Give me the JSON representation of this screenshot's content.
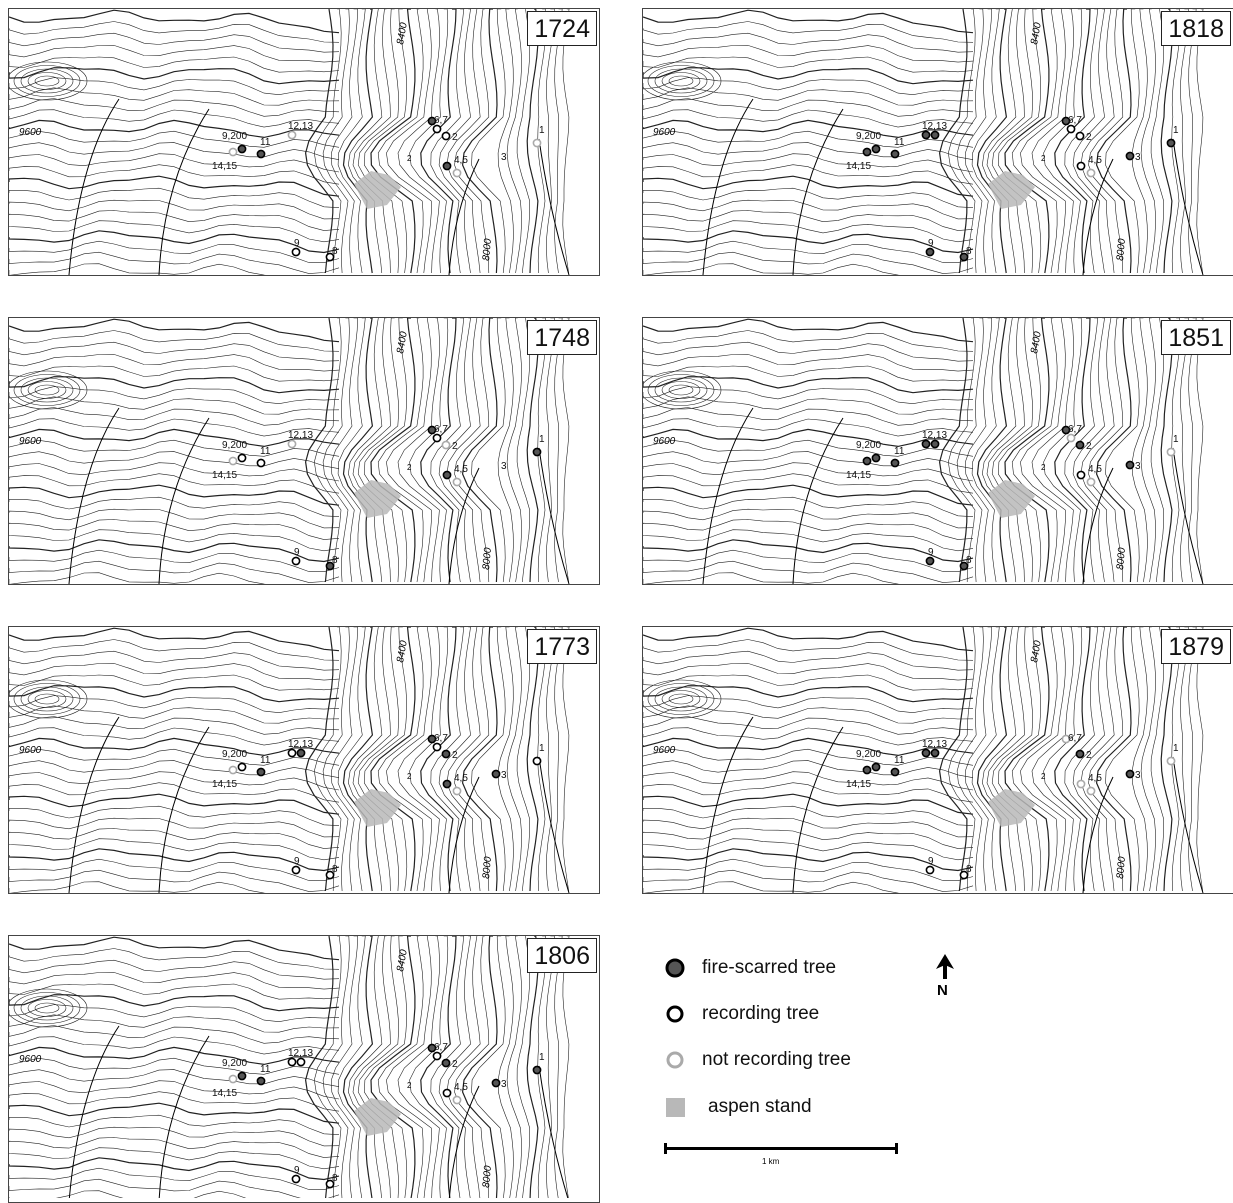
{
  "panels": [
    {
      "year": "1724",
      "trees": [
        {
          "label": "9,200",
          "status": "not"
        },
        {
          "label": "14,15",
          "status": "fire"
        },
        {
          "label": "11",
          "status": "fire"
        },
        {
          "label": "12,13",
          "status": "not"
        },
        {
          "label": "6,7",
          "status": "fire"
        },
        {
          "label": "6,7b",
          "status": "recording"
        },
        {
          "label": "2",
          "status": "recording"
        },
        {
          "label": "4,5",
          "status": "fire"
        },
        {
          "label": "4,5b",
          "status": "not"
        },
        {
          "label": "3",
          "status": "none"
        },
        {
          "label": "1",
          "status": "not"
        },
        {
          "label": "9",
          "status": "recording"
        },
        {
          "label": "8",
          "status": "recording"
        }
      ]
    },
    {
      "year": "1748",
      "trees": [
        {
          "label": "9,200",
          "status": "not"
        },
        {
          "label": "14,15",
          "status": "recording"
        },
        {
          "label": "11",
          "status": "recording"
        },
        {
          "label": "12,13",
          "status": "not"
        },
        {
          "label": "6,7",
          "status": "fire"
        },
        {
          "label": "6,7b",
          "status": "recording"
        },
        {
          "label": "2",
          "status": "not"
        },
        {
          "label": "4,5",
          "status": "fire"
        },
        {
          "label": "4,5b",
          "status": "not"
        },
        {
          "label": "3",
          "status": "none"
        },
        {
          "label": "1",
          "status": "fire"
        },
        {
          "label": "9",
          "status": "recording"
        },
        {
          "label": "8",
          "status": "fire"
        }
      ]
    },
    {
      "year": "1773",
      "trees": [
        {
          "label": "9,200",
          "status": "not"
        },
        {
          "label": "14,15",
          "status": "recording"
        },
        {
          "label": "11",
          "status": "fire"
        },
        {
          "label": "12,13",
          "status": "recording"
        },
        {
          "label": "12,13b",
          "status": "fire"
        },
        {
          "label": "6,7",
          "status": "fire"
        },
        {
          "label": "6,7b",
          "status": "recording"
        },
        {
          "label": "2",
          "status": "fire"
        },
        {
          "label": "4,5",
          "status": "fire"
        },
        {
          "label": "4,5b",
          "status": "not"
        },
        {
          "label": "3",
          "status": "fire"
        },
        {
          "label": "1",
          "status": "recording"
        },
        {
          "label": "9",
          "status": "recording"
        },
        {
          "label": "8",
          "status": "recording"
        }
      ]
    },
    {
      "year": "1806",
      "trees": [
        {
          "label": "9,200",
          "status": "not"
        },
        {
          "label": "14,15",
          "status": "fire"
        },
        {
          "label": "11",
          "status": "fire"
        },
        {
          "label": "12,13",
          "status": "recording"
        },
        {
          "label": "12,13b",
          "status": "recording"
        },
        {
          "label": "6,7",
          "status": "fire"
        },
        {
          "label": "6,7b",
          "status": "recording"
        },
        {
          "label": "2",
          "status": "fire"
        },
        {
          "label": "4,5",
          "status": "recording"
        },
        {
          "label": "4,5b",
          "status": "not"
        },
        {
          "label": "3",
          "status": "fire"
        },
        {
          "label": "1",
          "status": "fire"
        },
        {
          "label": "9",
          "status": "recording"
        },
        {
          "label": "8",
          "status": "recording"
        }
      ]
    },
    {
      "year": "1818",
      "trees": [
        {
          "label": "9,200",
          "status": "fire"
        },
        {
          "label": "14,15",
          "status": "fire"
        },
        {
          "label": "11",
          "status": "fire"
        },
        {
          "label": "12,13",
          "status": "fire"
        },
        {
          "label": "12,13b",
          "status": "fire"
        },
        {
          "label": "6,7",
          "status": "fire"
        },
        {
          "label": "6,7b",
          "status": "recording"
        },
        {
          "label": "2",
          "status": "recording"
        },
        {
          "label": "4,5",
          "status": "recording"
        },
        {
          "label": "4,5b",
          "status": "not"
        },
        {
          "label": "3",
          "status": "fire"
        },
        {
          "label": "1",
          "status": "fire"
        },
        {
          "label": "9",
          "status": "fire"
        },
        {
          "label": "8",
          "status": "fire"
        }
      ]
    },
    {
      "year": "1851",
      "trees": [
        {
          "label": "9,200",
          "status": "fire"
        },
        {
          "label": "14,15",
          "status": "fire"
        },
        {
          "label": "11",
          "status": "fire"
        },
        {
          "label": "12,13",
          "status": "fire"
        },
        {
          "label": "12,13b",
          "status": "fire"
        },
        {
          "label": "6,7",
          "status": "fire"
        },
        {
          "label": "6,7b",
          "status": "not"
        },
        {
          "label": "2",
          "status": "fire"
        },
        {
          "label": "4,5",
          "status": "recording"
        },
        {
          "label": "4,5b",
          "status": "not"
        },
        {
          "label": "3",
          "status": "fire"
        },
        {
          "label": "1",
          "status": "not"
        },
        {
          "label": "9",
          "status": "fire"
        },
        {
          "label": "8",
          "status": "fire"
        }
      ]
    },
    {
      "year": "1879",
      "trees": [
        {
          "label": "9,200",
          "status": "fire"
        },
        {
          "label": "14,15",
          "status": "fire"
        },
        {
          "label": "11",
          "status": "fire"
        },
        {
          "label": "12,13",
          "status": "fire"
        },
        {
          "label": "12,13b",
          "status": "fire"
        },
        {
          "label": "6,7",
          "status": "not"
        },
        {
          "label": "2",
          "status": "fire"
        },
        {
          "label": "4,5",
          "status": "not"
        },
        {
          "label": "4,5b",
          "status": "not"
        },
        {
          "label": "3",
          "status": "fire"
        },
        {
          "label": "1",
          "status": "not"
        },
        {
          "label": "9",
          "status": "recording"
        },
        {
          "label": "8",
          "status": "recording"
        }
      ]
    }
  ],
  "tree_labels": [
    "9,200",
    "14,15",
    "11",
    "12,13",
    "6,7",
    "2",
    "4,5",
    "3",
    "1",
    "9",
    "8"
  ],
  "contour_labels": [
    "9600",
    "8400",
    "8000",
    "2"
  ],
  "legend": {
    "fire": "fire-scarred tree",
    "recording": "recording tree",
    "not": "not recording tree",
    "aspen": "aspen stand"
  },
  "north_label": "N",
  "scale_label": "1 km",
  "colors": {
    "fire_fill": "#555555",
    "recording_stroke": "#000000",
    "not_stroke": "#aaaaaa",
    "aspen": "#b8b8b8",
    "contour": "#222222"
  }
}
